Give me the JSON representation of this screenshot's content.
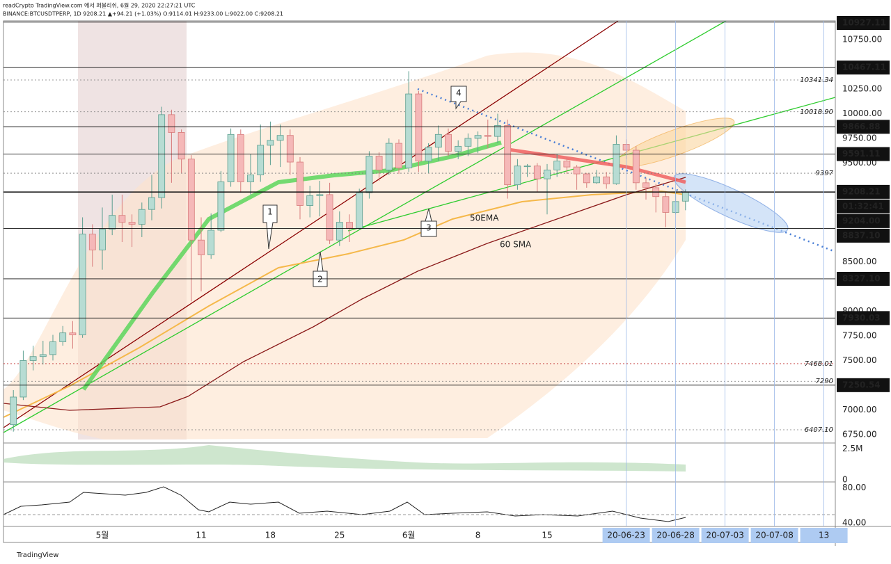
{
  "header": {
    "line1": "readCrypto TradingView.com 에서 퍼블리쉬, 6월 29, 2020 22:27:21 UTC",
    "line2": "BINANCE:BTCUSDTPERP, 1D 9208.21 ▲+94.21 (+1.03%) O:9114.01 H:9233.00 L:9022.00 C:9208.21"
  },
  "chart_data": {
    "type": "candlestick",
    "open": [
      6850,
      7130,
      7500,
      7540,
      7560,
      7690,
      7780,
      7760,
      8780,
      8620,
      8830,
      8970,
      8900,
      8880,
      9030,
      9150,
      9990,
      9810,
      9540,
      8720,
      8570,
      8820,
      9310,
      9790,
      9310,
      9380,
      9680,
      9730,
      9780,
      9510,
      9070,
      9170,
      9180,
      8720,
      8900,
      8840,
      9200,
      9570,
      9430,
      9700,
      9450,
      10200,
      9520,
      9660,
      9790,
      9620,
      9670,
      9750,
      9780,
      9770,
      9880,
      9280,
      9470,
      9470,
      9340,
      9430,
      9520,
      9460,
      9390,
      9300,
      9360,
      9290,
      9690,
      9630,
      9300,
      9250,
      9160,
      9000,
      9114.01
    ],
    "high": [
      7200,
      7600,
      7650,
      7700,
      7760,
      7850,
      7900,
      8950,
      8880,
      9050,
      9180,
      9180,
      8980,
      9100,
      9380,
      10070,
      10040,
      9840,
      9580,
      8950,
      8990,
      9420,
      9850,
      9840,
      9590,
      9890,
      9920,
      9890,
      9840,
      9560,
      9270,
      9320,
      9300,
      9010,
      8980,
      9240,
      9620,
      9610,
      9750,
      9740,
      10430,
      10230,
      9700,
      9880,
      9850,
      9730,
      9800,
      9820,
      9940,
      10000,
      9940,
      9540,
      9490,
      9500,
      9490,
      9590,
      9560,
      9480,
      9400,
      9430,
      9410,
      9780,
      9740,
      9670,
      9350,
      9290,
      9200,
      9220,
      9233
    ],
    "low": [
      6780,
      7100,
      7400,
      7460,
      7500,
      7650,
      7620,
      7730,
      8450,
      8420,
      8770,
      8700,
      8650,
      8750,
      8920,
      9040,
      9300,
      9400,
      8100,
      8200,
      8530,
      8800,
      9260,
      9200,
      9180,
      9310,
      9480,
      9460,
      9380,
      8930,
      8950,
      8960,
      8680,
      8660,
      8700,
      8820,
      9140,
      9320,
      9380,
      9390,
      9410,
      9410,
      9400,
      9520,
      9570,
      9540,
      9570,
      9600,
      9650,
      9700,
      9140,
      9230,
      9360,
      9210,
      8980,
      9360,
      9390,
      9230,
      9250,
      9290,
      9240,
      9280,
      9540,
      9230,
      9130,
      9000,
      8850,
      8980,
      9022
    ],
    "close": [
      7130,
      7500,
      7540,
      7560,
      7690,
      7780,
      7760,
      8780,
      8620,
      8830,
      8970,
      8900,
      8880,
      9030,
      9150,
      9990,
      9810,
      9540,
      8720,
      8570,
      8820,
      9310,
      9790,
      9310,
      9380,
      9680,
      9730,
      9780,
      9510,
      9070,
      9170,
      9180,
      8720,
      8900,
      8840,
      9200,
      9570,
      9430,
      9700,
      9450,
      10200,
      9520,
      9660,
      9790,
      9620,
      9670,
      9750,
      9780,
      9770,
      9880,
      9280,
      9470,
      9470,
      9340,
      9430,
      9520,
      9460,
      9390,
      9300,
      9360,
      9290,
      9690,
      9630,
      9300,
      9250,
      9160,
      9000,
      9110,
      9208.21
    ],
    "up_color": "#b7dcd3",
    "down_color": "#f5b8b8",
    "ylim": [
      6700,
      10940
    ],
    "yticks": [
      {
        "value": 10750,
        "label": "10750.00"
      },
      {
        "value": 10250,
        "label": "10250.00"
      },
      {
        "value": 10000,
        "label": "10000.00"
      },
      {
        "value": 9750,
        "label": "9750.00"
      },
      {
        "value": 9500,
        "label": "9500.00"
      },
      {
        "value": 8500,
        "label": "8500.00"
      },
      {
        "value": 8000,
        "label": "8000.00"
      },
      {
        "value": 7750,
        "label": "7750.00"
      },
      {
        "value": 7500,
        "label": "7500.00"
      },
      {
        "value": 7000,
        "label": "7000.00"
      },
      {
        "value": 6750,
        "label": "6750.00"
      }
    ],
    "price_labels": [
      10927.11,
      10467.11,
      9866.88,
      9591.11,
      9208.21,
      {
        "value": 9204,
        "label": "9204.00"
      },
      {
        "value": 8837.1,
        "label": "8837.10"
      },
      {
        "value": 8327.1,
        "label": "8327.10"
      },
      7930.03,
      7250.54
    ],
    "timer": "01:32:41",
    "level_labels": [
      10341.34,
      {
        "value": 10018.9,
        "label": "10018.90"
      },
      9397,
      7290,
      7468.01,
      {
        "value": 6407.1,
        "label": "6407.10"
      }
    ],
    "x_labels": [
      "5월",
      "11",
      "18",
      "25",
      "6월",
      "8",
      "15",
      "20-06-23",
      "20-06-28",
      "20-07-03",
      "20-07-08",
      "13"
    ],
    "annotations": [
      "1",
      "2",
      "3",
      "4",
      "50EMA",
      "60 SMA"
    ],
    "volume": {
      "ylim": [
        0,
        2800000
      ],
      "yticks": [
        {
          "value": 2500000,
          "label": "2.5M"
        },
        0
      ]
    },
    "rsi": {
      "ylim": [
        36,
        85
      ],
      "yticks": [
        {
          "value": 80,
          "label": "80.00"
        },
        {
          "value": 40,
          "label": "40.00"
        }
      ]
    }
  },
  "footer": "TradingView"
}
